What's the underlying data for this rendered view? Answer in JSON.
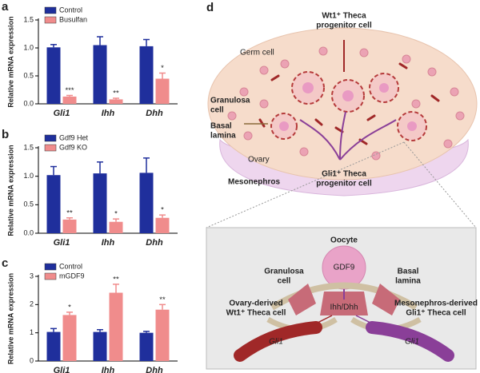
{
  "chart_data": [
    {
      "type": "bar",
      "panel": "a",
      "y_label": "Relative mRNA expression",
      "categories": [
        "Gli1",
        "Ihh",
        "Dhh"
      ],
      "series": [
        {
          "name": "Control",
          "color": "#1f2f9c",
          "values": [
            1.01,
            1.05,
            1.03
          ],
          "errors": [
            0.05,
            0.15,
            0.12
          ]
        },
        {
          "name": "Busulfan",
          "color": "#f08c8c",
          "values": [
            0.13,
            0.08,
            0.45
          ],
          "errors": [
            0.02,
            0.02,
            0.1
          ]
        }
      ],
      "annotations": [
        "***",
        "**",
        "*"
      ],
      "ylim": [
        0,
        1.5
      ],
      "yticks": [
        {
          "value": 0,
          "label": "0.0"
        },
        0.5,
        {
          "value": 1,
          "label": "1.0"
        },
        1.5
      ]
    },
    {
      "type": "bar",
      "panel": "b",
      "y_label": "Relative mRNA expression",
      "categories": [
        "Gli1",
        "Ihh",
        "Dhh"
      ],
      "series": [
        {
          "name": "Gdf9 Het",
          "color": "#1f2f9c",
          "values": [
            1.02,
            1.05,
            1.06
          ],
          "errors": [
            0.15,
            0.2,
            0.26
          ]
        },
        {
          "name": "Gdf9 KO",
          "color": "#f08c8c",
          "values": [
            0.24,
            0.2,
            0.27
          ],
          "errors": [
            0.03,
            0.05,
            0.05
          ]
        }
      ],
      "annotations": [
        "**",
        "*",
        "*"
      ],
      "ylim": [
        0,
        1.5
      ],
      "yticks": [
        {
          "value": 0,
          "label": "0.0"
        },
        0.5,
        {
          "value": 1,
          "label": "1.0"
        },
        1.5
      ]
    },
    {
      "type": "bar",
      "panel": "c",
      "y_label": "Relative mRNA expression",
      "categories": [
        "Gli1",
        "Ihh",
        "Dhh"
      ],
      "series": [
        {
          "name": "Control",
          "color": "#1f2f9c",
          "values": [
            1.03,
            1.03,
            1.0
          ],
          "errors": [
            0.12,
            0.08,
            0.05
          ]
        },
        {
          "name": "mGDF9",
          "color": "#f08c8c",
          "values": [
            1.63,
            2.42,
            1.82
          ],
          "errors": [
            0.1,
            0.3,
            0.18
          ]
        }
      ],
      "annotations": [
        "*",
        "**",
        "**"
      ],
      "ylim": [
        0,
        3
      ],
      "yticks": [
        0,
        1,
        2,
        3
      ]
    }
  ],
  "diagram": {
    "panel": "d",
    "germ_cell": "Germ cell",
    "wt1_progenitor": [
      "Wt1⁺ Theca",
      "progenitor cell"
    ],
    "granulosa": [
      "Granulosa",
      "cell"
    ],
    "basal": [
      "Basal",
      "lamina"
    ],
    "ovary": "Ovary",
    "mesonephros": "Mesonephros",
    "gli1_progenitor": [
      "Gli1⁺ Theca",
      "progenitor cell"
    ],
    "oocyte": "Oocyte",
    "gdf9": "GDF9",
    "granulosa2": [
      "Granulosa",
      "cell"
    ],
    "basal2": [
      "Basal",
      "lamina"
    ],
    "ihh_dhh": "Ihh/Dhh",
    "ovary_derived": [
      "Ovary-derived",
      "Wt1⁺ Theca cell"
    ],
    "meso_derived": [
      "Mesonephros-derived",
      "Gli1⁺ Theca cell"
    ],
    "gli1_left": "Gli1",
    "gli1_right": "Gli1"
  }
}
